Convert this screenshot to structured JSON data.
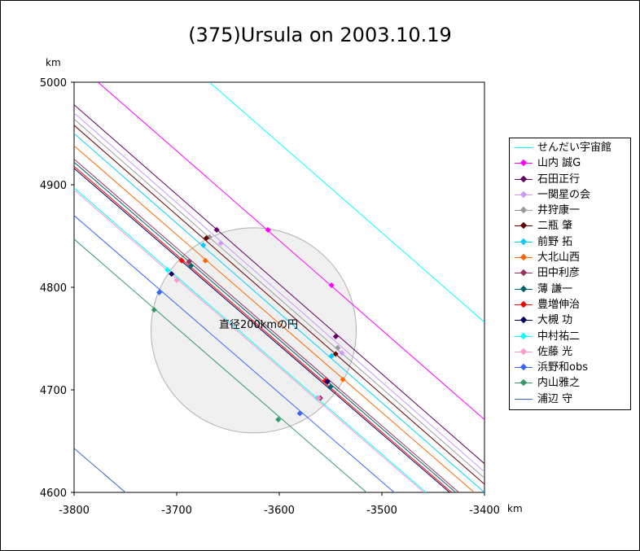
{
  "chart_data": {
    "type": "line",
    "title": "(375)Ursula on 2003.10.19",
    "xlabel": "km",
    "ylabel": "km",
    "xlim": [
      -3800,
      -3400
    ],
    "ylim": [
      4600,
      5000
    ],
    "x_ticks": [
      "-3800",
      "-3700",
      "-3600",
      "-3500",
      "-3400"
    ],
    "y_ticks": [
      "4600",
      "4700",
      "4800",
      "4900",
      "5000"
    ],
    "circle": {
      "cx": -3625,
      "cy": 4758,
      "r": 100,
      "label": "直径200kmの円"
    },
    "series": [
      {
        "name": "せんだい宇宙館",
        "color": "#00ffff",
        "line": [
          [
            -3668,
            5000
          ],
          [
            -3400,
            4766
          ]
        ],
        "points": []
      },
      {
        "name": "山内 誠G",
        "color": "#ff00ff",
        "line": [
          [
            -3779,
            5002
          ],
          [
            -3400,
            4671
          ]
        ],
        "points": [
          [
            -3611,
            4856
          ],
          [
            -3549,
            4802
          ]
        ]
      },
      {
        "name": "石田正行",
        "color": "#660066",
        "line": [
          [
            -3800,
            4978
          ],
          [
            -3400,
            4628
          ]
        ],
        "points": [
          [
            -3661,
            4856
          ],
          [
            -3545,
            4752
          ]
        ]
      },
      {
        "name": "一関星の会",
        "color": "#cc99ff",
        "line": [
          [
            -3800,
            4970
          ],
          [
            -3400,
            4620
          ]
        ],
        "points": [
          [
            -3657,
            4843
          ],
          [
            -3539,
            4736
          ]
        ]
      },
      {
        "name": "井狩康一",
        "color": "#999999",
        "line": [
          [
            -3800,
            4964
          ],
          [
            -3400,
            4614
          ]
        ],
        "points": [
          [
            -3668,
            4849
          ],
          [
            -3543,
            4741
          ]
        ]
      },
      {
        "name": "二瓶 肇",
        "color": "#660000",
        "line": [
          [
            -3800,
            4958
          ],
          [
            -3400,
            4608
          ]
        ],
        "points": [
          [
            -3671,
            4848
          ],
          [
            -3545,
            4735
          ]
        ]
      },
      {
        "name": "前野 拓",
        "color": "#00ccff",
        "line": [
          [
            -3800,
            4950
          ],
          [
            -3400,
            4600
          ]
        ],
        "points": [
          [
            -3674,
            4841
          ],
          [
            -3549,
            4733
          ]
        ]
      },
      {
        "name": "大北山西",
        "color": "#ff6600",
        "line": [
          [
            -3800,
            4938
          ],
          [
            -3410,
            4600
          ]
        ],
        "points": [
          [
            -3672,
            4826
          ],
          [
            -3538,
            4710
          ]
        ]
      },
      {
        "name": "田中利彦",
        "color": "#993366",
        "line": [
          [
            -3800,
            4925
          ],
          [
            -3425,
            4600
          ]
        ],
        "points": [
          [
            -3688,
            4825
          ],
          [
            -3560,
            4692
          ]
        ]
      },
      {
        "name": "薄 謙一",
        "color": "#006666",
        "line": [
          [
            -3800,
            4922
          ],
          [
            -3428,
            4600
          ]
        ],
        "points": [
          [
            -3686,
            4821
          ],
          [
            -3550,
            4703
          ]
        ]
      },
      {
        "name": "豊増伸治",
        "color": "#ff0000",
        "line": [
          [
            -3800,
            4918
          ],
          [
            -3432,
            4600
          ]
        ],
        "points": [
          [
            -3695,
            4826
          ],
          [
            -3555,
            4709
          ]
        ]
      },
      {
        "name": "大槻 功",
        "color": "#000066",
        "line": [
          [
            -3800,
            4916
          ],
          [
            -3434,
            4600
          ]
        ],
        "points": [
          [
            -3705,
            4813
          ],
          [
            -3553,
            4708
          ]
        ]
      },
      {
        "name": "中村祐二",
        "color": "#00ffff",
        "line": [
          [
            -3800,
            4897
          ],
          [
            -3457,
            4600
          ]
        ],
        "points": [
          [
            -3709,
            4817
          ],
          [
            -3563,
            4692
          ]
        ]
      },
      {
        "name": "佐藤 光",
        "color": "#ff99cc",
        "line": [
          [
            -3800,
            4895
          ],
          [
            -3459,
            4600
          ]
        ],
        "points": [
          [
            -3700,
            4807
          ],
          [
            -3562,
            4692
          ]
        ]
      },
      {
        "name": "浜野和obs",
        "color": "#3366ff",
        "line": [
          [
            -3800,
            4870
          ],
          [
            -3488,
            4600
          ]
        ],
        "points": [
          [
            -3717,
            4795
          ],
          [
            -3580,
            4677
          ]
        ]
      },
      {
        "name": "内山雅之",
        "color": "#339966",
        "line": [
          [
            -3800,
            4847
          ],
          [
            -3515,
            4600
          ]
        ],
        "points": [
          [
            -3722,
            4778
          ],
          [
            -3601,
            4671
          ]
        ]
      },
      {
        "name": "浦辺 守",
        "color": "#3366cc",
        "line": [
          [
            -3800,
            4643
          ],
          [
            -3750,
            4600
          ]
        ],
        "points": []
      }
    ]
  }
}
